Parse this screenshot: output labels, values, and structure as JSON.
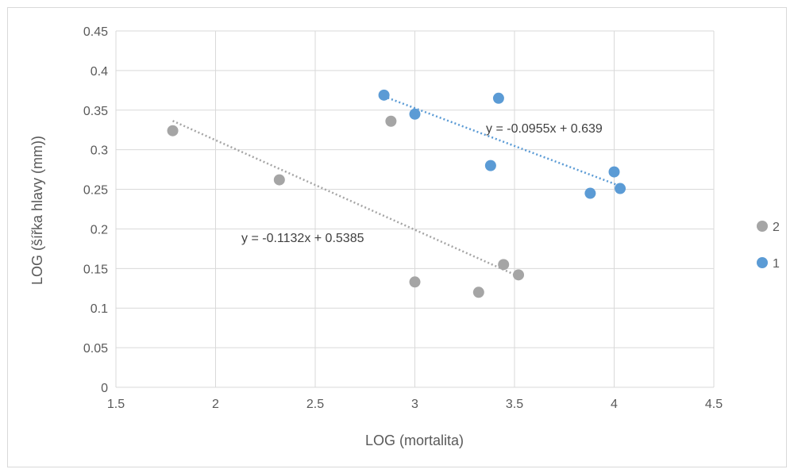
{
  "chart_data": {
    "type": "scatter",
    "title": "",
    "xlabel": "LOG (mortalita)",
    "ylabel": "LOG (šířka hlavy (mm))",
    "xlim": [
      1.5,
      4.5
    ],
    "ylim": [
      0,
      0.45
    ],
    "x_ticks": [
      "1.5",
      "2",
      "2.5",
      "3",
      "3.5",
      "4",
      "4.5"
    ],
    "y_ticks": [
      "0",
      "0.05",
      "0.1",
      "0.15",
      "0.2",
      "0.25",
      "0.3",
      "0.35",
      "0.4",
      "0.45"
    ],
    "grid": "major gridlines on both axes",
    "legend_position": "right",
    "series": [
      {
        "name": "2",
        "color": "#a5a5a5",
        "points": [
          {
            "x": 1.785,
            "y": 0.324
          },
          {
            "x": 2.32,
            "y": 0.262
          },
          {
            "x": 2.88,
            "y": 0.336
          },
          {
            "x": 3.0,
            "y": 0.133
          },
          {
            "x": 3.32,
            "y": 0.12
          },
          {
            "x": 3.445,
            "y": 0.155
          },
          {
            "x": 3.52,
            "y": 0.142
          }
        ],
        "trendline": {
          "slope": -0.1132,
          "intercept": 0.5385,
          "x_range": [
            1.785,
            3.52
          ],
          "equation": "y = -0.1132x + 0.5385"
        }
      },
      {
        "name": "1",
        "color": "#5b9bd5",
        "points": [
          {
            "x": 2.845,
            "y": 0.369
          },
          {
            "x": 3.0,
            "y": 0.345
          },
          {
            "x": 3.38,
            "y": 0.28
          },
          {
            "x": 3.42,
            "y": 0.365
          },
          {
            "x": 3.88,
            "y": 0.245
          },
          {
            "x": 4.0,
            "y": 0.272
          },
          {
            "x": 4.03,
            "y": 0.251
          }
        ],
        "trendline": {
          "slope": -0.0955,
          "intercept": 0.639,
          "x_range": [
            2.845,
            4.03
          ],
          "equation": "y = -0.0955x + 0.639"
        }
      }
    ]
  }
}
